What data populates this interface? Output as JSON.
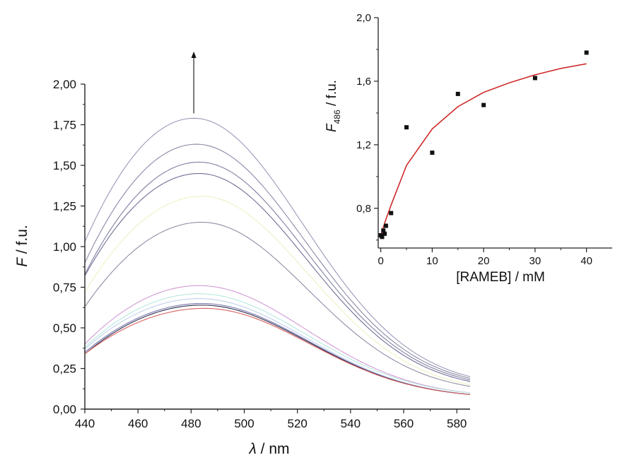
{
  "chart_data": [
    {
      "type": "line",
      "xlabel_symbol": "λ",
      "xlabel_unit": " / nm",
      "ylabel_symbol": "F",
      "ylabel_unit": " / f.u.",
      "xlim": [
        440,
        585
      ],
      "ylim": [
        0,
        2.0
      ],
      "x_ticks": [
        "440",
        "460",
        "480",
        "500",
        "520",
        "540",
        "560",
        "580"
      ],
      "y_ticks": [
        "0,00",
        "0,25",
        "0,50",
        "0,75",
        "1,00",
        "1,25",
        "1,50",
        "1,75",
        "2,00"
      ],
      "arrow": {
        "direction": "up",
        "x": 481,
        "y_from": 1.82,
        "y_to": 2.2
      },
      "series": [
        {
          "color": "#9a9ab8",
          "values": [
            [
              440,
              1.03
            ],
            [
              481,
              1.79
            ],
            [
              585,
              0.2
            ]
          ]
        },
        {
          "color": "#8a8aa6",
          "values": [
            [
              440,
              0.9
            ],
            [
              482,
              1.63
            ],
            [
              585,
              0.19
            ]
          ]
        },
        {
          "color": "#7f7fa0",
          "values": [
            [
              440,
              0.83
            ],
            [
              483,
              1.52
            ],
            [
              585,
              0.18
            ]
          ]
        },
        {
          "color": "#6f6f96",
          "values": [
            [
              440,
              0.82
            ],
            [
              483,
              1.45
            ],
            [
              585,
              0.17
            ]
          ]
        },
        {
          "color": "#f0f0c4",
          "values": [
            [
              440,
              0.72
            ],
            [
              484,
              1.31
            ],
            [
              585,
              0.15
            ]
          ]
        },
        {
          "color": "#8e8ea6",
          "values": [
            [
              440,
              0.63
            ],
            [
              484,
              1.15
            ],
            [
              585,
              0.14
            ]
          ]
        },
        {
          "color": "#d29ad6",
          "values": [
            [
              440,
              0.4
            ],
            [
              483,
              0.76
            ],
            [
              585,
              0.1
            ]
          ]
        },
        {
          "color": "#b8e8e0",
          "values": [
            [
              440,
              0.38
            ],
            [
              483,
              0.71
            ],
            [
              585,
              0.1
            ]
          ]
        },
        {
          "color": "#c0d0ee",
          "values": [
            [
              440,
              0.37
            ],
            [
              483,
              0.68
            ],
            [
              585,
              0.09
            ]
          ]
        },
        {
          "color": "#7878b0",
          "values": [
            [
              440,
              0.35
            ],
            [
              484,
              0.65
            ],
            [
              585,
              0.09
            ]
          ]
        },
        {
          "color": "#303050",
          "values": [
            [
              440,
              0.34
            ],
            [
              484,
              0.64
            ],
            [
              585,
              0.09
            ]
          ]
        },
        {
          "color": "#d86060",
          "values": [
            [
              440,
              0.34
            ],
            [
              485,
              0.62
            ],
            [
              585,
              0.09
            ]
          ]
        }
      ]
    },
    {
      "type": "scatter",
      "xlabel": "[RAMEB] / mM",
      "ylabel_symbol": "F",
      "ylabel_subscript": "486",
      "ylabel_unit": " / f.u.",
      "xlim": [
        -0.5,
        45
      ],
      "ylim": [
        0.55,
        2.0
      ],
      "x_ticks": [
        "0",
        "10",
        "20",
        "30",
        "40"
      ],
      "y_ticks": [
        "0,8",
        "1,2",
        "1,6",
        "2,0"
      ],
      "points": [
        [
          0,
          0.63
        ],
        [
          0.25,
          0.62
        ],
        [
          0.5,
          0.66
        ],
        [
          0.75,
          0.64
        ],
        [
          1,
          0.69
        ],
        [
          2,
          0.77
        ],
        [
          5,
          1.31
        ],
        [
          10,
          1.15
        ],
        [
          15,
          1.52
        ],
        [
          20,
          1.45
        ],
        [
          30,
          1.62
        ],
        [
          40,
          1.78
        ]
      ],
      "fit": {
        "color": "#cc2020",
        "x": [
          0,
          1,
          2,
          5,
          10,
          15,
          20,
          25,
          30,
          35,
          40
        ],
        "y": [
          0.63,
          0.73,
          0.82,
          1.07,
          1.3,
          1.44,
          1.53,
          1.59,
          1.64,
          1.68,
          1.71
        ]
      }
    }
  ]
}
